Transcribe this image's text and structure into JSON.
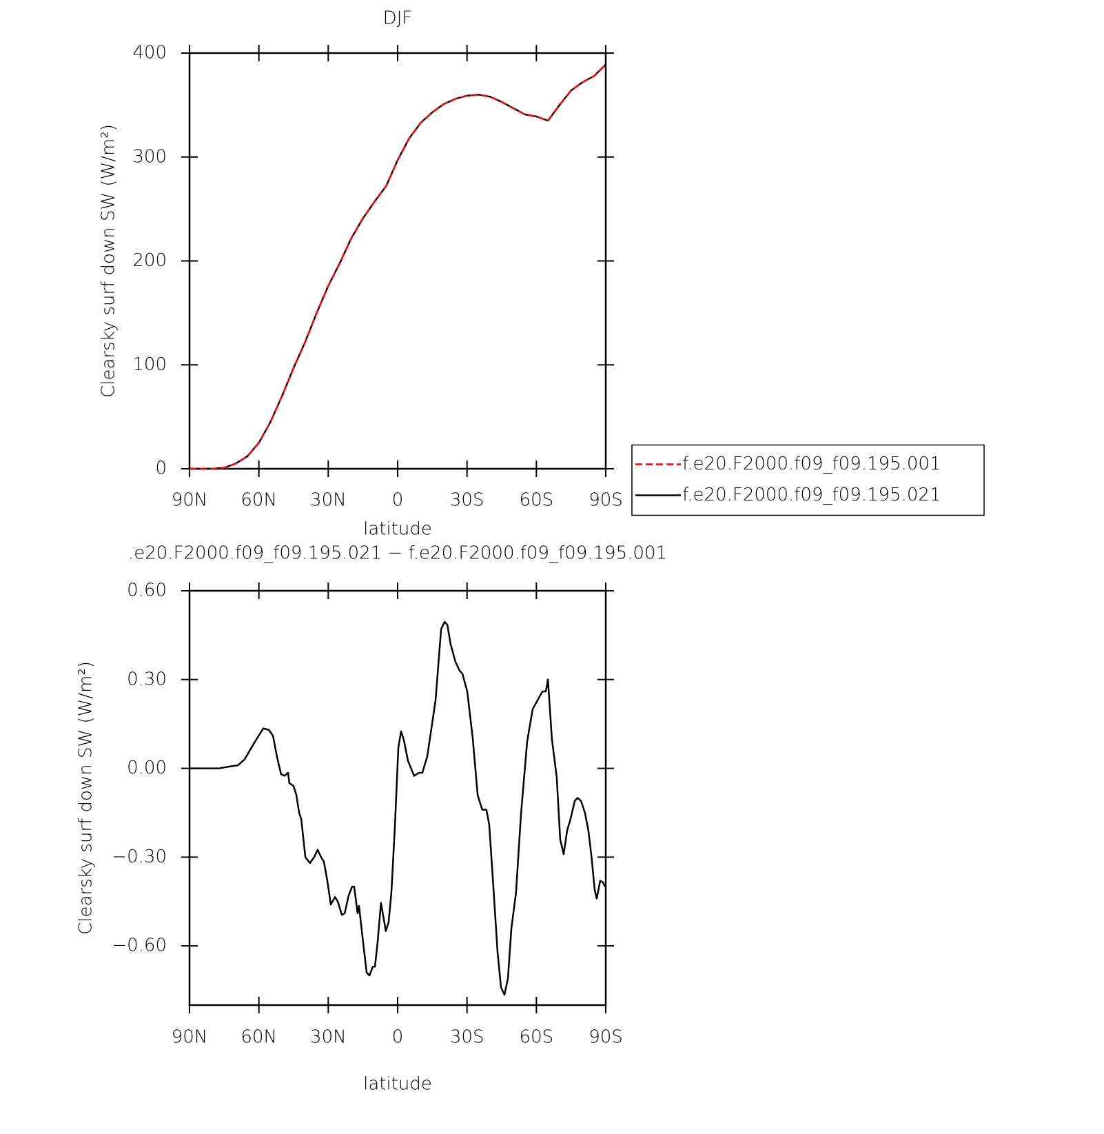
{
  "chart_data": [
    {
      "type": "line",
      "title": "DJF",
      "xlabel": "latitude",
      "ylabel": "Clearsky surf down SW (W/m²)",
      "xlim": [
        90,
        -90
      ],
      "xticks": [
        {
          "value": 90,
          "label": "90N"
        },
        {
          "value": 60,
          "label": "60N"
        },
        {
          "value": 30,
          "label": "30N"
        },
        0,
        {
          "value": -30,
          "label": "30S"
        },
        {
          "value": -60,
          "label": "60S"
        },
        {
          "value": -90,
          "label": "90S"
        }
      ],
      "ylim": [
        0,
        400
      ],
      "yticks": [
        0,
        100,
        200,
        300,
        400
      ],
      "legend": "right",
      "x": [
        90,
        85,
        80,
        75,
        70,
        65,
        60,
        55,
        50,
        45,
        40,
        35,
        30,
        25,
        20,
        15,
        10,
        5,
        0,
        -5,
        -10,
        -15,
        -20,
        -25,
        -30,
        -35,
        -40,
        -45,
        -50,
        -55,
        -60,
        -65,
        -70,
        -75,
        -80,
        -85,
        -90
      ],
      "series": [
        {
          "name": "f.e20.F2000.f09_f09.195.001",
          "color": "#ff0000",
          "dash": "dashed",
          "values": [
            0,
            0,
            0,
            1,
            5,
            12,
            25,
            45,
            70,
            97,
            122,
            150,
            176,
            198,
            222,
            241,
            257,
            272,
            297,
            318,
            333,
            343,
            351,
            356,
            359,
            360,
            358,
            353,
            347,
            341,
            339,
            335,
            350,
            364,
            372,
            378,
            389
          ]
        },
        {
          "name": "f.e20.F2000.f09_f09.195.021",
          "color": "#000000",
          "dash": "solid",
          "values": [
            0,
            0,
            0,
            1,
            5,
            12,
            25,
            45,
            70,
            97,
            122,
            150,
            176,
            198,
            222,
            241,
            257,
            272,
            297,
            318,
            333,
            343,
            351,
            356,
            359,
            360,
            358,
            353,
            347,
            341,
            339,
            335,
            350,
            364,
            372,
            378,
            389
          ]
        }
      ]
    },
    {
      "type": "line",
      "title": ".e20.F2000.f09_f09.195.021 − f.e20.F2000.f09_f09.195.001",
      "xlabel": "latitude",
      "ylabel": "Clearsky surf down SW (W/m²)",
      "xlim": [
        90,
        -90
      ],
      "xticks": [
        {
          "value": 90,
          "label": "90N"
        },
        {
          "value": 60,
          "label": "60N"
        },
        {
          "value": 30,
          "label": "30N"
        },
        0,
        {
          "value": -30,
          "label": "30S"
        },
        {
          "value": -60,
          "label": "60S"
        },
        {
          "value": -90,
          "label": "90S"
        }
      ],
      "ylim": [
        -0.8,
        0.6
      ],
      "yticks": [
        {
          "value": 0.6,
          "label": "0.60"
        },
        {
          "value": 0.3,
          "label": "0.30"
        },
        {
          "value": 0,
          "label": "0.00"
        },
        {
          "value": -0.3,
          "label": "−0.30"
        },
        {
          "value": -0.6,
          "label": "−0.60"
        }
      ],
      "color": "#000000",
      "x": [
        90,
        77.2,
        73.6,
        69.1,
        66.2,
        61.7,
        58.1,
        55.7,
        53.9,
        52.2,
        50.4,
        48.9,
        47.4,
        46.8,
        45.0,
        43.8,
        42.6,
        41.7,
        39.9,
        37.9,
        36.1,
        34.6,
        33.1,
        31.9,
        30.4,
        28.9,
        27.1,
        25.9,
        24.1,
        22.9,
        21.2,
        19.7,
        18.8,
        17.3,
        16.7,
        14.9,
        13.4,
        12.2,
        10.7,
        9.8,
        8.7,
        7.2,
        5.1,
        3.9,
        2.7,
        1.2,
        -0.3,
        -1.5,
        -2.7,
        -4.5,
        -7.1,
        -9.2,
        -10.7,
        -12.8,
        -14.9,
        -16.4,
        -18.8,
        -20.3,
        -21.5,
        -22.9,
        -25.0,
        -26.8,
        -28.0,
        -30.1,
        -32.5,
        -34.6,
        -36.6,
        -38.4,
        -39.6,
        -41.4,
        -43.2,
        -44.7,
        -46.2,
        -47.7,
        -49.2,
        -51.2,
        -53.3,
        -56.0,
        -58.4,
        -60.5,
        -62.6,
        -64.1,
        -65.0,
        -66.7,
        -68.8,
        -70.3,
        -71.8,
        -73.3,
        -74.8,
        -76.6,
        -77.8,
        -79.3,
        -81.0,
        -82.5,
        -84.0,
        -85.2,
        -86.1,
        -87.6,
        -88.8,
        -89.7
      ],
      "values": [
        0,
        0,
        0.005,
        0.01,
        0.03,
        0.09,
        0.135,
        0.13,
        0.11,
        0.04,
        -0.02,
        -0.025,
        -0.015,
        -0.05,
        -0.06,
        -0.09,
        -0.15,
        -0.17,
        -0.3,
        -0.32,
        -0.3,
        -0.275,
        -0.3,
        -0.315,
        -0.38,
        -0.46,
        -0.435,
        -0.45,
        -0.495,
        -0.49,
        -0.43,
        -0.4,
        -0.4,
        -0.49,
        -0.465,
        -0.59,
        -0.69,
        -0.7,
        -0.67,
        -0.67,
        -0.59,
        -0.455,
        -0.55,
        -0.52,
        -0.42,
        -0.2,
        0.07,
        0.125,
        0.095,
        0.025,
        -0.025,
        -0.015,
        -0.015,
        0.04,
        0.15,
        0.23,
        0.47,
        0.495,
        0.485,
        0.42,
        0.36,
        0.33,
        0.32,
        0.26,
        0.1,
        -0.09,
        -0.14,
        -0.14,
        -0.19,
        -0.4,
        -0.62,
        -0.74,
        -0.765,
        -0.71,
        -0.54,
        -0.42,
        -0.16,
        0.09,
        0.2,
        0.23,
        0.26,
        0.26,
        0.3,
        0.1,
        -0.03,
        -0.24,
        -0.29,
        -0.21,
        -0.17,
        -0.11,
        -0.1,
        -0.11,
        -0.15,
        -0.21,
        -0.31,
        -0.41,
        -0.44,
        -0.38,
        -0.385,
        -0.4
      ]
    }
  ]
}
